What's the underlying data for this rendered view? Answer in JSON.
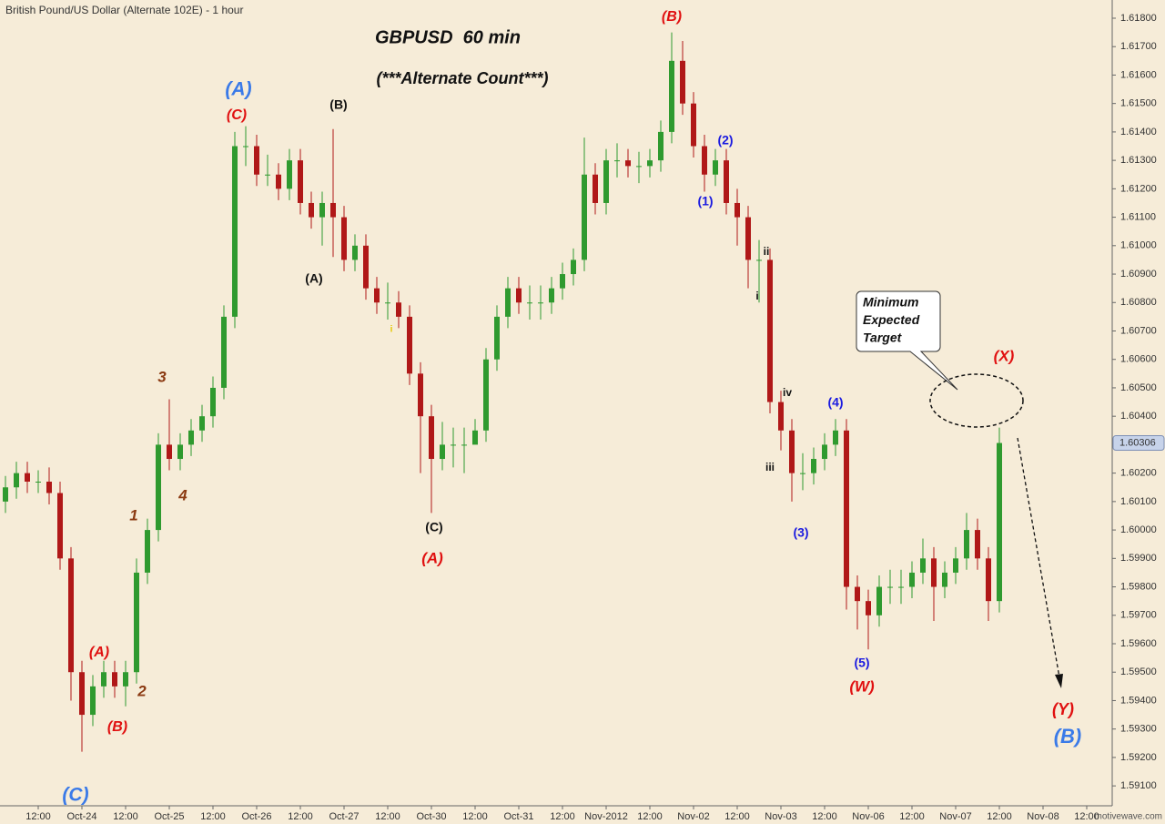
{
  "chart_data": {
    "type": "candlestick",
    "header": "British Pound/US Dollar (Alternate 102E) - 1 hour",
    "title": "GBPUSD  60 min",
    "subtitle": "(***Alternate Count***)",
    "up_color": "#2f9a2f",
    "down_color": "#b01818",
    "x": [
      1.5,
      4.5,
      7.5,
      10.5,
      13.5,
      16.5,
      19.5,
      22.5,
      25.5,
      28.5,
      31.5,
      34.5,
      37.5,
      40.5,
      43.5,
      46.5,
      49.5,
      52.5,
      55.5,
      58.5,
      61.5,
      64.5,
      67.5,
      70.5,
      73.5,
      76.5,
      79.5,
      82.5,
      85.5,
      88.5,
      91.5,
      94.5,
      97.5,
      100.5,
      103.5,
      106.5,
      109.5,
      112.5,
      115.5,
      118.5,
      121.5,
      124.5,
      127.5,
      130.5,
      133.5,
      136.5,
      139.5,
      142.5,
      145.5,
      148.5,
      151.5,
      154.5,
      157.5,
      160.5,
      163.5,
      166.5,
      169.5,
      172.5,
      175.5,
      178.5,
      181.5,
      184.5,
      187.5,
      190.5,
      193.5,
      196.5,
      199.5,
      202.5,
      205.5,
      208.5,
      211.5,
      214.5,
      217.5,
      220.5,
      223.5,
      226.5,
      229.5,
      232.5,
      235.5,
      238.5,
      241.5,
      244.5,
      247.5,
      250.5,
      253.5,
      256.5,
      259.5,
      262.5,
      265.5,
      268.5,
      271.5,
      274.5
    ],
    "open": [
      1.601,
      1.6015,
      1.602,
      1.6017,
      1.6017,
      1.6013,
      1.599,
      1.595,
      1.5935,
      1.5945,
      1.595,
      1.5945,
      1.595,
      1.5985,
      1.6,
      1.603,
      1.6025,
      1.603,
      1.6035,
      1.604,
      1.605,
      1.6075,
      1.6135,
      1.6135,
      1.6125,
      1.6125,
      1.612,
      1.613,
      1.6115,
      1.611,
      1.6115,
      1.611,
      1.6095,
      1.61,
      1.6085,
      1.608,
      1.608,
      1.6075,
      1.6055,
      1.604,
      1.6025,
      1.603,
      1.603,
      1.603,
      1.6035,
      1.606,
      1.6075,
      1.6085,
      1.608,
      1.608,
      1.608,
      1.6085,
      1.609,
      1.6095,
      1.6125,
      1.6115,
      1.613,
      1.613,
      1.6128,
      1.6128,
      1.613,
      1.614,
      1.6165,
      1.615,
      1.6135,
      1.6125,
      1.613,
      1.6115,
      1.611,
      1.6095,
      1.6095,
      1.6045,
      1.6035,
      1.602,
      1.602,
      1.6025,
      1.603,
      1.6035,
      1.598,
      1.5975,
      1.597,
      1.598,
      1.598,
      1.598,
      1.5985,
      1.599,
      1.598,
      1.5985,
      1.599,
      1.6,
      1.599,
      1.5975
    ],
    "high": [
      1.6019,
      1.6024,
      1.6024,
      1.6021,
      1.6022,
      1.6017,
      1.5994,
      1.5954,
      1.5949,
      1.5954,
      1.5954,
      1.5954,
      1.599,
      1.6004,
      1.6034,
      1.6046,
      1.6034,
      1.6039,
      1.6044,
      1.6054,
      1.6079,
      1.614,
      1.6142,
      1.6139,
      1.6132,
      1.6129,
      1.6134,
      1.6134,
      1.6119,
      1.6119,
      1.6141,
      1.6114,
      1.6104,
      1.6104,
      1.6089,
      1.6087,
      1.6084,
      1.6079,
      1.6059,
      1.6044,
      1.6038,
      1.6036,
      1.6036,
      1.6039,
      1.6064,
      1.6079,
      1.6089,
      1.6089,
      1.6086,
      1.6086,
      1.6089,
      1.6094,
      1.6099,
      1.6138,
      1.6129,
      1.6134,
      1.6136,
      1.6134,
      1.6133,
      1.6134,
      1.6144,
      1.6175,
      1.6172,
      1.6154,
      1.6139,
      1.6134,
      1.6134,
      1.612,
      1.6114,
      1.6102,
      1.6099,
      1.6049,
      1.6039,
      1.6027,
      1.6029,
      1.6034,
      1.6039,
      1.6039,
      1.5984,
      1.5979,
      1.5984,
      1.5986,
      1.5986,
      1.5989,
      1.5997,
      1.5994,
      1.5989,
      1.5994,
      1.6006,
      1.6004,
      1.5994,
      1.6036
    ],
    "low": [
      1.6006,
      1.6011,
      1.6013,
      1.6013,
      1.6009,
      1.5986,
      1.594,
      1.5922,
      1.5931,
      1.5941,
      1.5941,
      1.5938,
      1.5946,
      1.5981,
      1.5996,
      1.6021,
      1.6021,
      1.6026,
      1.6031,
      1.6036,
      1.6046,
      1.6071,
      1.6128,
      1.6121,
      1.6121,
      1.6116,
      1.6116,
      1.6111,
      1.6106,
      1.61,
      1.6096,
      1.6091,
      1.6091,
      1.6081,
      1.6076,
      1.6074,
      1.6071,
      1.6051,
      1.602,
      1.6006,
      1.6021,
      1.6022,
      1.602,
      1.6031,
      1.6031,
      1.6056,
      1.6071,
      1.6076,
      1.6074,
      1.6074,
      1.6076,
      1.6081,
      1.6086,
      1.6091,
      1.6111,
      1.6111,
      1.6124,
      1.6124,
      1.6122,
      1.6124,
      1.6126,
      1.6136,
      1.6146,
      1.6131,
      1.6119,
      1.6121,
      1.6111,
      1.61,
      1.6085,
      1.608,
      1.6041,
      1.6028,
      1.601,
      1.6014,
      1.6016,
      1.6021,
      1.6026,
      1.5972,
      1.5965,
      1.5958,
      1.5966,
      1.5974,
      1.5974,
      1.5976,
      1.5981,
      1.5968,
      1.5976,
      1.5981,
      1.5986,
      1.5986,
      1.5968,
      1.5971
    ],
    "close": [
      1.6015,
      1.602,
      1.6017,
      1.6017,
      1.6013,
      1.599,
      1.595,
      1.5935,
      1.5945,
      1.595,
      1.5945,
      1.595,
      1.5985,
      1.6,
      1.603,
      1.6025,
      1.603,
      1.6035,
      1.604,
      1.605,
      1.6075,
      1.6135,
      1.6135,
      1.6125,
      1.6125,
      1.612,
      1.613,
      1.6115,
      1.611,
      1.6115,
      1.611,
      1.6095,
      1.61,
      1.6085,
      1.608,
      1.608,
      1.6075,
      1.6055,
      1.604,
      1.6025,
      1.603,
      1.603,
      1.603,
      1.6035,
      1.606,
      1.6075,
      1.6085,
      1.608,
      1.608,
      1.608,
      1.6085,
      1.609,
      1.6095,
      1.6125,
      1.6115,
      1.613,
      1.613,
      1.6128,
      1.6128,
      1.613,
      1.614,
      1.6165,
      1.615,
      1.6135,
      1.6125,
      1.613,
      1.6115,
      1.611,
      1.6095,
      1.6095,
      1.6045,
      1.6035,
      1.602,
      1.602,
      1.6025,
      1.603,
      1.6035,
      1.598,
      1.5975,
      1.597,
      1.598,
      1.598,
      1.598,
      1.5985,
      1.599,
      1.598,
      1.5985,
      1.599,
      1.6,
      1.599,
      1.5975,
      1.60306
    ],
    "xlim": [
      0,
      305.5
    ],
    "xticks": [
      {
        "value": 10.5,
        "label": "12:00"
      },
      {
        "value": 22.5,
        "label": "Oct-24"
      },
      {
        "value": 34.5,
        "label": "12:00"
      },
      {
        "value": 46.5,
        "label": "Oct-25"
      },
      {
        "value": 58.5,
        "label": "12:00"
      },
      {
        "value": 70.5,
        "label": "Oct-26"
      },
      {
        "value": 82.5,
        "label": "12:00"
      },
      {
        "value": 94.5,
        "label": "Oct-27"
      },
      {
        "value": 106.5,
        "label": "12:00"
      },
      {
        "value": 118.5,
        "label": "Oct-30"
      },
      {
        "value": 130.5,
        "label": "12:00"
      },
      {
        "value": 142.5,
        "label": "Oct-31"
      },
      {
        "value": 154.5,
        "label": "12:00"
      },
      {
        "value": 166.5,
        "label": "Nov-2012"
      },
      {
        "value": 178.5,
        "label": "12:00"
      },
      {
        "value": 190.5,
        "label": "Nov-02"
      },
      {
        "value": 202.5,
        "label": "12:00"
      },
      {
        "value": 214.5,
        "label": "Nov-03"
      },
      {
        "value": 226.5,
        "label": "12:00"
      },
      {
        "value": 238.5,
        "label": "Nov-06"
      },
      {
        "value": 250.5,
        "label": "12:00"
      },
      {
        "value": 262.5,
        "label": "Nov-07"
      },
      {
        "value": 274.5,
        "label": "12:00"
      },
      {
        "value": 286.5,
        "label": "Nov-08"
      },
      {
        "value": 298.5,
        "label": "12:00"
      }
    ],
    "ylim": [
      1.5903,
      1.61864
    ],
    "yticks": [
      {
        "value": 1.591,
        "label": "1.59100"
      },
      {
        "value": 1.592,
        "label": "1.59200"
      },
      {
        "value": 1.593,
        "label": "1.59300"
      },
      {
        "value": 1.594,
        "label": "1.59400"
      },
      {
        "value": 1.595,
        "label": "1.59500"
      },
      {
        "value": 1.596,
        "label": "1.59600"
      },
      {
        "value": 1.597,
        "label": "1.59700"
      },
      {
        "value": 1.598,
        "label": "1.59800"
      },
      {
        "value": 1.599,
        "label": "1.59900"
      },
      {
        "value": 1.6,
        "label": "1.60000"
      },
      {
        "value": 1.601,
        "label": "1.60100"
      },
      {
        "value": 1.602,
        "label": "1.60200"
      },
      {
        "value": 1.603,
        "label": "1.60300"
      },
      {
        "value": 1.604,
        "label": "1.60400"
      },
      {
        "value": 1.605,
        "label": "1.60500"
      },
      {
        "value": 1.606,
        "label": "1.60600"
      },
      {
        "value": 1.607,
        "label": "1.60700"
      },
      {
        "value": 1.608,
        "label": "1.60800"
      },
      {
        "value": 1.609,
        "label": "1.60900"
      },
      {
        "value": 1.61,
        "label": "1.61000"
      },
      {
        "value": 1.611,
        "label": "1.61100"
      },
      {
        "value": 1.612,
        "label": "1.61200"
      },
      {
        "value": 1.613,
        "label": "1.61300"
      },
      {
        "value": 1.614,
        "label": "1.61400"
      },
      {
        "value": 1.615,
        "label": "1.61500"
      },
      {
        "value": 1.616,
        "label": "1.61600"
      },
      {
        "value": 1.617,
        "label": "1.61700"
      },
      {
        "value": 1.618,
        "label": "1.61800"
      }
    ],
    "annotations": [
      "(A)",
      "(C)",
      "(B)",
      "(A)",
      "(C)",
      "(A)",
      "(B)",
      "(2)",
      "(1)",
      "ii",
      "i",
      "iv",
      "(4)",
      "iii",
      "(3)",
      "(5)",
      "(W)",
      "(X)",
      "(Y)",
      "(B)",
      "3",
      "4",
      "1",
      "2",
      "(A)",
      "(B)",
      "(C)",
      "i"
    ],
    "callout": [
      "Minimum",
      "Expected",
      "Target"
    ],
    "watermark": "motivewave.com"
  }
}
